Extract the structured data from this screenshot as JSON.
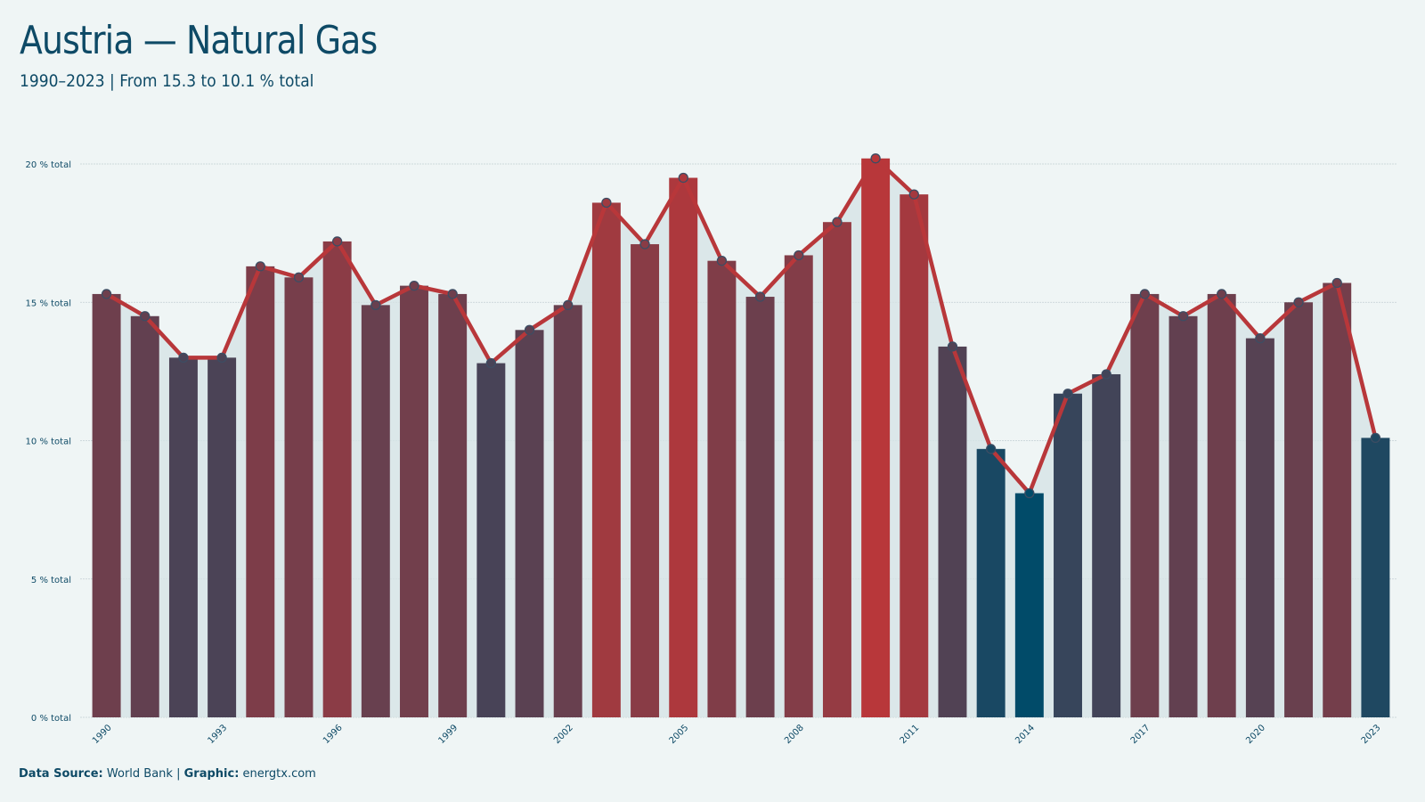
{
  "title": "Austria — Natural Gas",
  "subtitle": "1990–2023 | From 15.3 to 10.1 % total",
  "footer": {
    "source_label": "Data Source:",
    "source_value": "World Bank",
    "separator": "|",
    "graphic_label": "Graphic:",
    "graphic_value": "energtx.com"
  },
  "colors": {
    "background": "#eff5f5",
    "high": "#b8373a",
    "low": "#014b69",
    "line": "#b8373a",
    "area": "#d6e3e6",
    "text": "#0e4a66"
  },
  "chart_data": {
    "type": "bar",
    "overlay": "line",
    "categories": [
      "1990",
      "1991",
      "1992",
      "1993",
      "1994",
      "1995",
      "1996",
      "1997",
      "1998",
      "1999",
      "2000",
      "2001",
      "2002",
      "2003",
      "2004",
      "2005",
      "2006",
      "2007",
      "2008",
      "2009",
      "2010",
      "2011",
      "2012",
      "2013",
      "2014",
      "2015",
      "2016",
      "2017",
      "2018",
      "2019",
      "2020",
      "2021",
      "2022",
      "2023"
    ],
    "values": [
      15.3,
      14.5,
      13.0,
      13.0,
      16.3,
      15.9,
      17.2,
      14.9,
      15.6,
      15.3,
      12.8,
      14.0,
      14.9,
      18.6,
      17.1,
      19.5,
      16.5,
      15.2,
      16.7,
      17.9,
      20.2,
      18.9,
      13.4,
      9.7,
      8.1,
      11.7,
      12.4,
      15.3,
      14.5,
      15.3,
      13.7,
      15.0,
      15.7,
      10.1
    ],
    "x_tick_labels": [
      "1990",
      "1993",
      "1996",
      "1999",
      "2002",
      "2005",
      "2008",
      "2011",
      "2014",
      "2017",
      "2020",
      "2023"
    ],
    "y_ticks": [
      0,
      5,
      10,
      15,
      20
    ],
    "y_tick_labels": [
      "0 % total",
      "5 % total",
      "10 % total",
      "15 % total",
      "20 % total"
    ],
    "ylim": [
      0,
      21
    ],
    "grid": true,
    "legend": "none"
  }
}
